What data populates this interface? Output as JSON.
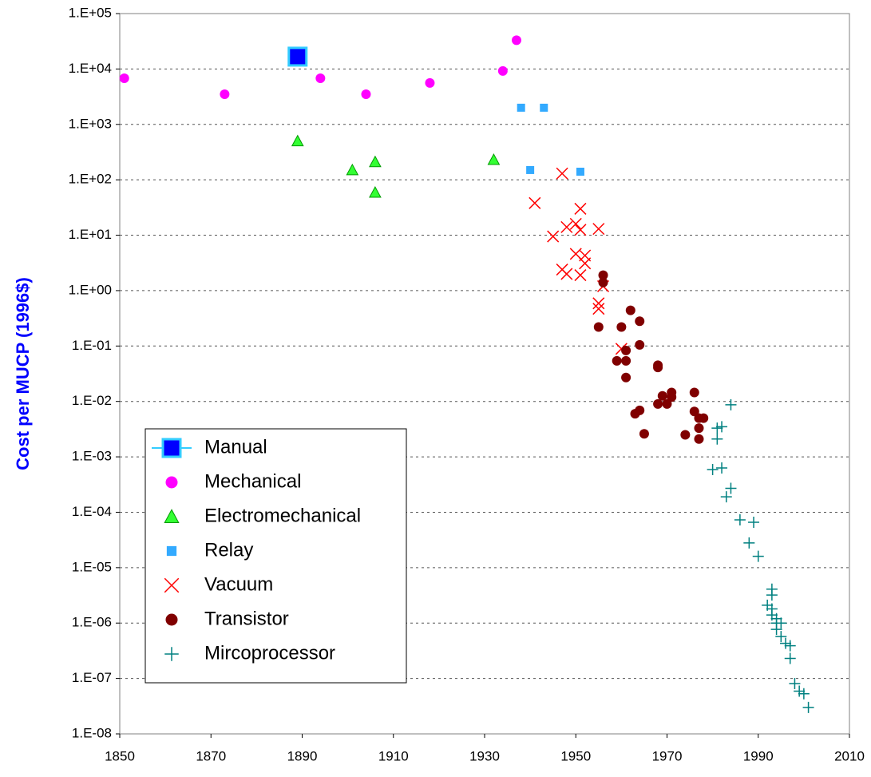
{
  "chart_data": {
    "type": "scatter",
    "ylabel": "Cost per MUCP (1996$)",
    "yscale": "log",
    "grid": true,
    "legend": "lower left",
    "xlim": [
      1850,
      2010
    ],
    "xticks": [
      1850,
      1870,
      1890,
      1910,
      1930,
      1950,
      1970,
      1990,
      2010
    ],
    "ylim": [
      1e-08,
      100000
    ],
    "yticks": [
      {
        "value": 1e-08,
        "label": "1.E-08"
      },
      {
        "value": 1e-07,
        "label": "1.E-07"
      },
      {
        "value": 1e-06,
        "label": "1.E-06"
      },
      {
        "value": 1e-05,
        "label": "1.E-05"
      },
      {
        "value": 0.0001,
        "label": "1.E-04"
      },
      {
        "value": 0.001,
        "label": "1.E-03"
      },
      {
        "value": 0.01,
        "label": "1.E-02"
      },
      {
        "value": 0.1,
        "label": "1.E-01"
      },
      {
        "value": 1,
        "label": "1.E+00"
      },
      {
        "value": 10,
        "label": "1.E+01"
      },
      {
        "value": 100,
        "label": "1.E+02"
      },
      {
        "value": 1000,
        "label": "1.E+03"
      },
      {
        "value": 10000,
        "label": "1.E+04"
      },
      {
        "value": 100000,
        "label": "1.E+05"
      }
    ],
    "series": [
      {
        "name": "Manual",
        "color": "#0000ff",
        "edgecolor": "#33ccff",
        "marker": "square",
        "x": [
          1889
        ],
        "values": [
          16700
        ]
      },
      {
        "name": "Mechanical",
        "color": "#ff00ff",
        "marker": "circle",
        "x": [
          1851,
          1873,
          1894,
          1904,
          1918,
          1934,
          1937
        ],
        "values": [
          6800,
          3500,
          6800,
          3500,
          5600,
          9200,
          33000
        ]
      },
      {
        "name": "Electromechanical",
        "color": "#33ff33",
        "edgecolor": "#009900",
        "marker": "triangle",
        "x": [
          1889,
          1901,
          1906,
          1906,
          1932
        ],
        "values": [
          500,
          150,
          210,
          59,
          230
        ]
      },
      {
        "name": "Relay",
        "color": "#33aaff",
        "marker": "smallsquare",
        "x": [
          1938,
          1943,
          1940,
          1951
        ],
        "values": [
          2000,
          2000,
          150,
          140
        ]
      },
      {
        "name": "Vacuum",
        "color": "#ff0000",
        "marker": "x",
        "x": [
          1947,
          1941,
          1945,
          1948,
          1950,
          1951,
          1951,
          1955,
          1950,
          1952,
          1952,
          1947,
          1948,
          1951,
          1955,
          1955,
          1956,
          1960
        ],
        "values": [
          130,
          38,
          9.5,
          14,
          16,
          30,
          12.5,
          13,
          4.6,
          4.3,
          3.1,
          2.4,
          2,
          1.9,
          0.59,
          0.47,
          1.2,
          0.089
        ]
      },
      {
        "name": "Transistor",
        "color": "#800000",
        "marker": "circle",
        "x": [
          1956,
          1956,
          1955,
          1960,
          1962,
          1964,
          1964,
          1961,
          1959,
          1961,
          1961,
          1968,
          1968,
          1971,
          1971,
          1969,
          1970,
          1968,
          1976,
          1976,
          1977,
          1978,
          1977,
          1977,
          1974,
          1965,
          1963,
          1964
        ],
        "values": [
          1.9,
          1.4,
          0.22,
          0.22,
          0.44,
          0.28,
          0.105,
          0.083,
          0.054,
          0.054,
          0.027,
          0.041,
          0.045,
          0.0145,
          0.012,
          0.0126,
          0.009,
          0.009,
          0.0145,
          0.0066,
          0.005,
          0.005,
          0.0033,
          0.0021,
          0.0025,
          0.0026,
          0.006,
          0.0069
        ]
      },
      {
        "name": "Mircoprocessor",
        "color": "#008080",
        "marker": "plus",
        "x": [
          1984,
          1982,
          1981,
          1981,
          1980,
          1982,
          1984,
          1983,
          1986,
          1989,
          1988,
          1990,
          1993,
          1993,
          1992,
          1993,
          1993,
          1994,
          1994,
          1995,
          1994,
          1995,
          1996,
          1997,
          1997,
          1998,
          1999,
          2000,
          2001
        ],
        "values": [
          0.0087,
          0.0035,
          0.0033,
          0.0021,
          0.00059,
          0.00063,
          0.00027,
          0.00019,
          7.3e-05,
          6.6e-05,
          2.8e-05,
          1.6e-05,
          4.1e-06,
          3.2e-06,
          2.1e-06,
          1.8e-06,
          1.4e-06,
          1.2e-06,
          1e-06,
          1e-06,
          7.7e-07,
          5.7e-07,
          4.3e-07,
          3.9e-07,
          2.3e-07,
          8.1e-08,
          5.9e-08,
          5.3e-08,
          3e-08
        ]
      }
    ]
  }
}
